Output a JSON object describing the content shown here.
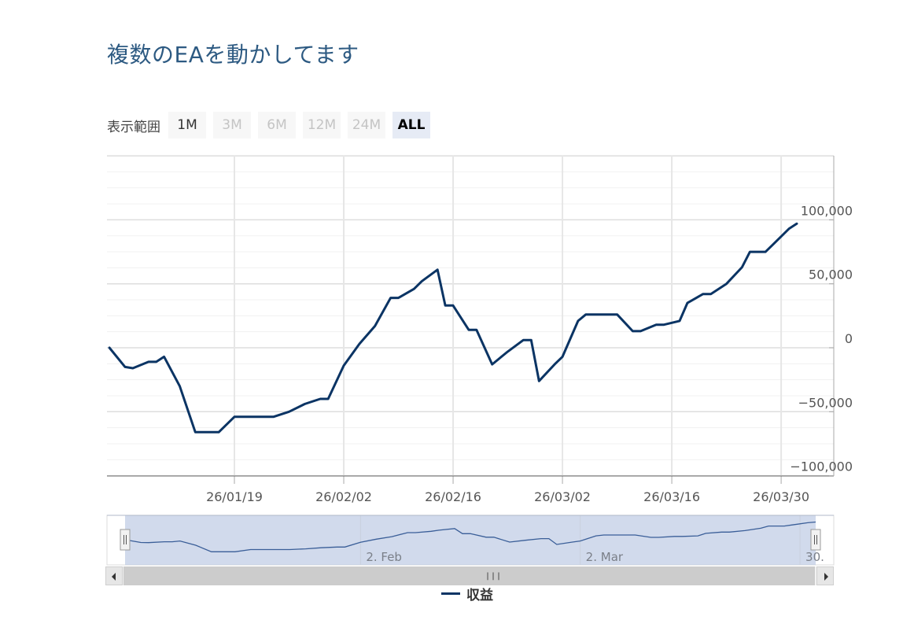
{
  "title": "複数のEAを動かしてます",
  "range_selector": {
    "label": "表示範囲",
    "buttons": [
      {
        "label": "1M",
        "state": "enabled"
      },
      {
        "label": "3M",
        "state": "disabled"
      },
      {
        "label": "6M",
        "state": "disabled"
      },
      {
        "label": "12M",
        "state": "disabled"
      },
      {
        "label": "24M",
        "state": "disabled"
      },
      {
        "label": "ALL",
        "state": "active"
      }
    ]
  },
  "colors": {
    "line": "#0b3464",
    "navigator_mask": "#b4c3e1",
    "grid": "#e6e6e6",
    "axis_text": "#555555"
  },
  "legend": {
    "label": "収益"
  },
  "navigator": {
    "labels": [
      "2. Feb",
      "2. Mar",
      "30."
    ]
  },
  "chart_data": {
    "type": "line",
    "title": "複数のEAを動かしてます",
    "x_axis": {
      "ticks": [
        "26/01/19",
        "26/02/02",
        "26/02/16",
        "26/03/02",
        "26/03/16",
        "26/03/30"
      ]
    },
    "y_axis": {
      "ticks": [
        100000,
        50000,
        0,
        -50000,
        -100000
      ],
      "tick_labels": [
        "100,000",
        "50,000",
        "0",
        "−50,000",
        "−100,000"
      ],
      "range": [
        -100000,
        150000
      ],
      "position": "right"
    },
    "series": [
      {
        "name": "収益",
        "points": [
          [
            "2026-01-03",
            0
          ],
          [
            "2026-01-05",
            -15000
          ],
          [
            "2026-01-06",
            -16000
          ],
          [
            "2026-01-08",
            -11000
          ],
          [
            "2026-01-09",
            -11000
          ],
          [
            "2026-01-10",
            -7000
          ],
          [
            "2026-01-12",
            -30000
          ],
          [
            "2026-01-14",
            -66000
          ],
          [
            "2026-01-16",
            -66000
          ],
          [
            "2026-01-17",
            -66000
          ],
          [
            "2026-01-19",
            -54000
          ],
          [
            "2026-01-20",
            -54000
          ],
          [
            "2026-01-21",
            -54000
          ],
          [
            "2026-01-22",
            -54000
          ],
          [
            "2026-01-24",
            -54000
          ],
          [
            "2026-01-26",
            -50000
          ],
          [
            "2026-01-28",
            -44000
          ],
          [
            "2026-01-30",
            -40000
          ],
          [
            "2026-01-31",
            -40000
          ],
          [
            "2026-02-02",
            -14000
          ],
          [
            "2026-02-04",
            3000
          ],
          [
            "2026-02-06",
            17000
          ],
          [
            "2026-02-08",
            39000
          ],
          [
            "2026-02-09",
            39000
          ],
          [
            "2026-02-11",
            46000
          ],
          [
            "2026-02-12",
            52000
          ],
          [
            "2026-02-14",
            61000
          ],
          [
            "2026-02-15",
            33000
          ],
          [
            "2026-02-16",
            33000
          ],
          [
            "2026-02-18",
            14000
          ],
          [
            "2026-02-19",
            14000
          ],
          [
            "2026-02-21",
            -13000
          ],
          [
            "2026-02-23",
            -3000
          ],
          [
            "2026-02-25",
            6000
          ],
          [
            "2026-02-26",
            6000
          ],
          [
            "2026-02-27",
            -26000
          ],
          [
            "2026-03-01",
            -13000
          ],
          [
            "2026-03-02",
            -7000
          ],
          [
            "2026-03-04",
            21000
          ],
          [
            "2026-03-05",
            26000
          ],
          [
            "2026-03-07",
            26000
          ],
          [
            "2026-03-09",
            26000
          ],
          [
            "2026-03-11",
            13000
          ],
          [
            "2026-03-12",
            13000
          ],
          [
            "2026-03-14",
            18000
          ],
          [
            "2026-03-15",
            18000
          ],
          [
            "2026-03-17",
            21000
          ],
          [
            "2026-03-18",
            35000
          ],
          [
            "2026-03-20",
            42000
          ],
          [
            "2026-03-21",
            42000
          ],
          [
            "2026-03-23",
            50000
          ],
          [
            "2026-03-25",
            63000
          ],
          [
            "2026-03-26",
            75000
          ],
          [
            "2026-03-28",
            75000
          ],
          [
            "2026-03-29",
            81000
          ],
          [
            "2026-03-31",
            93000
          ],
          [
            "2026-04-01",
            97000
          ]
        ]
      }
    ],
    "grid": true,
    "legend_position": "bottom-center",
    "navigator": true,
    "scrollbar": true
  }
}
